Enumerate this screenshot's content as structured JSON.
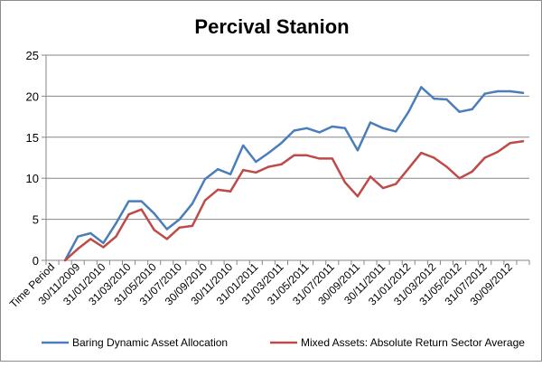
{
  "chart_data": {
    "type": "line",
    "title": "Percival Stanion",
    "categories": [
      "Time Period",
      "",
      "30/11/2009",
      "",
      "31/01/2010",
      "",
      "31/03/2010",
      "",
      "31/05/2010",
      "",
      "31/07/2010",
      "",
      "30/09/2010",
      "",
      "30/11/2010",
      "",
      "31/01/2011",
      "",
      "31/03/2011",
      "",
      "31/05/2011",
      "",
      "31/07/2011",
      "",
      "30/09/2011",
      "",
      "30/11/2011",
      "",
      "31/01/2012",
      "",
      "31/03/2012",
      "",
      "31/05/2012",
      "",
      "31/07/2012",
      "",
      "30/09/2012",
      ""
    ],
    "ylim": [
      0,
      25
    ],
    "yticks": [
      "0",
      "5",
      "10",
      "15",
      "20",
      "25"
    ],
    "grid": true,
    "legend": "bottom",
    "series": [
      {
        "name": "Baring Dynamic Asset Allocation",
        "color": "#4a7ebb",
        "values": [
          null,
          0,
          2.9,
          3.3,
          2.1,
          4.5,
          7.2,
          7.2,
          5.7,
          3.8,
          5.0,
          6.9,
          9.9,
          11.1,
          10.5,
          14.0,
          12.0,
          13.1,
          14.3,
          15.8,
          16.1,
          15.6,
          16.3,
          16.1,
          13.4,
          16.8,
          16.1,
          15.7,
          18.1,
          21.1,
          19.7,
          19.6,
          18.1,
          18.4,
          20.3,
          20.6,
          20.6,
          20.4
        ]
      },
      {
        "name": "Mixed Assets: Absolute Return Sector Average",
        "color": "#be4b48",
        "values": [
          null,
          0,
          1.4,
          2.6,
          1.6,
          2.9,
          5.6,
          6.2,
          3.7,
          2.6,
          4.0,
          4.2,
          7.3,
          8.6,
          8.4,
          11.0,
          10.7,
          11.4,
          11.7,
          12.8,
          12.8,
          12.4,
          12.4,
          9.5,
          7.8,
          10.2,
          8.8,
          9.3,
          11.2,
          13.1,
          12.5,
          11.4,
          10.0,
          10.8,
          12.5,
          13.2,
          14.3,
          14.5
        ]
      }
    ]
  }
}
